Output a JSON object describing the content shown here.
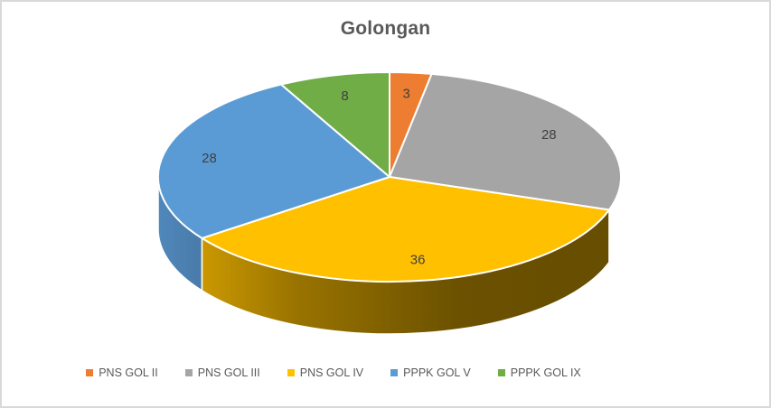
{
  "chart_data": {
    "type": "pie",
    "projection": "3d",
    "title": "Golongan",
    "series": [
      {
        "label": "PNS GOL II",
        "value": 3,
        "color": "#ED7D31"
      },
      {
        "label": "PNS GOL III",
        "value": 28,
        "color": "#A5A5A5"
      },
      {
        "label": "PNS GOL IV",
        "value": 36,
        "color": "#FFC000"
      },
      {
        "label": "PPPK GOL V",
        "value": 28,
        "color": "#5B9BD5"
      },
      {
        "label": "PPPK GOL IX",
        "value": 8,
        "color": "#70AD47"
      }
    ],
    "start_angle_deg": 0,
    "direction": "clockwise",
    "data_labels": "value",
    "legend_position": "bottom",
    "colors": {
      "title_text": "#595959",
      "data_label_text": "#404040",
      "legend_text": "#595959",
      "separator": "#FFFFFF",
      "frame_border": "#D9D9D9",
      "background": "#FFFFFF"
    }
  }
}
